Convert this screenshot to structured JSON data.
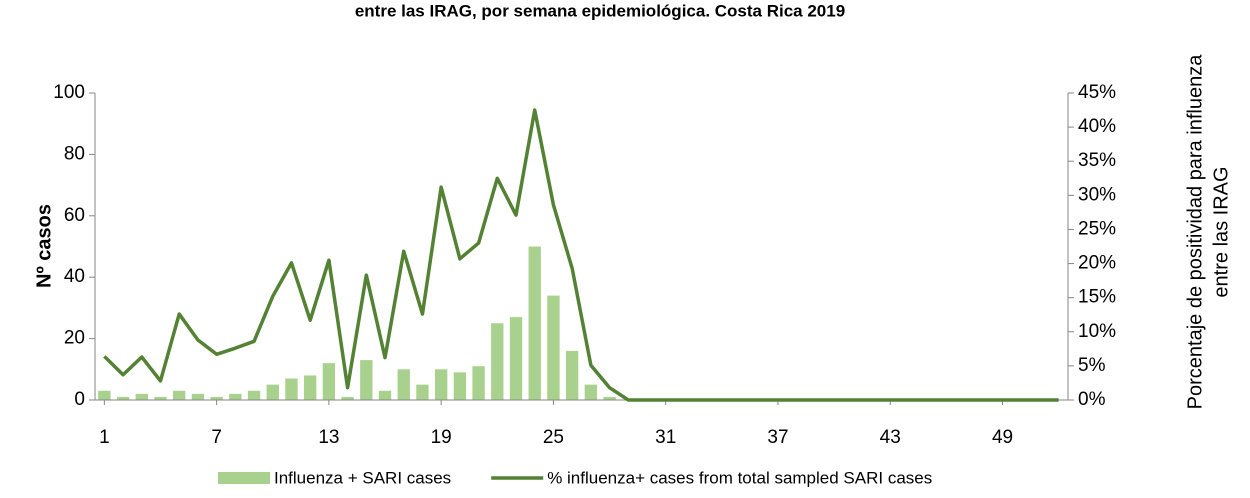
{
  "chart_data": {
    "type": "bar-line",
    "title": "entre las IRAG, por semana epidemiológica. Costa Rica 2019",
    "y_label": "Nº casos",
    "y2_label": [
      "Porcentaje de positividad para influenza",
      "entre las IRAG"
    ],
    "x": [
      1,
      2,
      3,
      4,
      5,
      6,
      7,
      8,
      9,
      10,
      11,
      12,
      13,
      14,
      15,
      16,
      17,
      18,
      19,
      20,
      21,
      22,
      23,
      24,
      25,
      26,
      27,
      28,
      29,
      30,
      31,
      32,
      33,
      34,
      35,
      36,
      37,
      38,
      39,
      40,
      41,
      42,
      43,
      44,
      45,
      46,
      47,
      48,
      49,
      50,
      51,
      52
    ],
    "xlim": [
      0.5,
      52.5
    ],
    "xticks": [
      1,
      7,
      13,
      19,
      25,
      31,
      37,
      43,
      49
    ],
    "ylim": [
      0,
      100
    ],
    "yticks": [
      0,
      20,
      40,
      60,
      80,
      100
    ],
    "y2lim": [
      0,
      45
    ],
    "y2ticks": [
      {
        "value": 0,
        "label": "0%"
      },
      {
        "value": 5,
        "label": "5%"
      },
      {
        "value": 10,
        "label": "10%"
      },
      {
        "value": 15,
        "label": "15%"
      },
      {
        "value": 20,
        "label": "20%"
      },
      {
        "value": 25,
        "label": "25%"
      },
      {
        "value": 30,
        "label": "30%"
      },
      {
        "value": 35,
        "label": "35%"
      },
      {
        "value": 40,
        "label": "40%"
      },
      {
        "value": 45,
        "label": "45%"
      }
    ],
    "series": [
      {
        "name": "Influenza + SARI cases",
        "type": "bar",
        "color": "#a9d18e",
        "values": [
          3,
          1,
          2,
          1,
          3,
          2,
          1,
          2,
          3,
          5,
          7,
          8,
          12,
          1,
          13,
          3,
          10,
          5,
          10,
          9,
          11,
          25,
          27,
          50,
          34,
          16,
          5,
          1,
          0,
          0,
          0,
          0,
          0,
          0,
          0,
          0,
          0,
          0,
          0,
          0,
          0,
          0,
          0,
          0,
          0,
          0,
          0,
          0,
          0,
          0,
          0,
          0
        ]
      },
      {
        "name": "% influenza+ cases from total sampled SARI cases",
        "type": "line",
        "axis": "y2",
        "color": "#548235",
        "values": [
          6.4,
          3.7,
          6.3,
          2.8,
          12.6,
          8.8,
          6.7,
          7.6,
          8.6,
          15.2,
          20.1,
          11.7,
          20.5,
          1.8,
          18.3,
          6.2,
          21.8,
          12.6,
          31.2,
          20.7,
          23.0,
          32.5,
          27.1,
          42.5,
          28.6,
          19.3,
          5.1,
          1.8,
          0,
          0,
          0,
          0,
          0,
          0,
          0,
          0,
          0,
          0,
          0,
          0,
          0,
          0,
          0,
          0,
          0,
          0,
          0,
          0,
          0,
          0,
          0,
          0
        ]
      }
    ]
  }
}
